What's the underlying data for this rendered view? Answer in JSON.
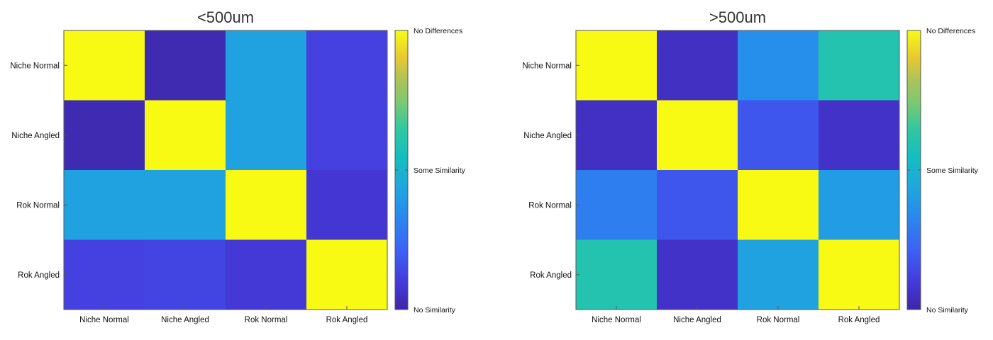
{
  "chart_data": [
    {
      "type": "heatmap",
      "title": "<500um",
      "xlabel": "",
      "ylabel": "",
      "categories": [
        "Niche Normal",
        "Niche Angled",
        "Rok Normal",
        "Rok Angled"
      ],
      "matrix": [
        [
          1.0,
          0.02,
          0.42,
          0.12
        ],
        [
          0.02,
          1.0,
          0.42,
          0.12
        ],
        [
          0.42,
          0.42,
          1.0,
          0.08
        ],
        [
          0.12,
          0.13,
          0.09,
          1.0
        ]
      ],
      "colorbar": {
        "range": [
          0,
          1
        ],
        "tick_labels": [
          {
            "value": 1.0,
            "label": "No Differences"
          },
          {
            "value": 0.5,
            "label": "Some Similarity"
          },
          {
            "value": 0.0,
            "label": "No Similarity"
          }
        ]
      },
      "grid": false
    },
    {
      "type": "heatmap",
      "title": ">500um",
      "xlabel": "",
      "ylabel": "",
      "categories": [
        "Niche Normal",
        "Niche Angled",
        "Rok Normal",
        "Rok Angled"
      ],
      "matrix": [
        [
          1.0,
          0.05,
          0.35,
          0.6
        ],
        [
          0.05,
          1.0,
          0.18,
          0.06
        ],
        [
          0.3,
          0.18,
          1.0,
          0.4
        ],
        [
          0.6,
          0.06,
          0.42,
          1.0
        ]
      ],
      "colorbar": {
        "range": [
          0,
          1
        ],
        "tick_labels": [
          {
            "value": 1.0,
            "label": "No Differences"
          },
          {
            "value": 0.5,
            "label": "Some Similarity"
          },
          {
            "value": 0.0,
            "label": "No Similarity"
          }
        ]
      },
      "grid": false
    }
  ]
}
